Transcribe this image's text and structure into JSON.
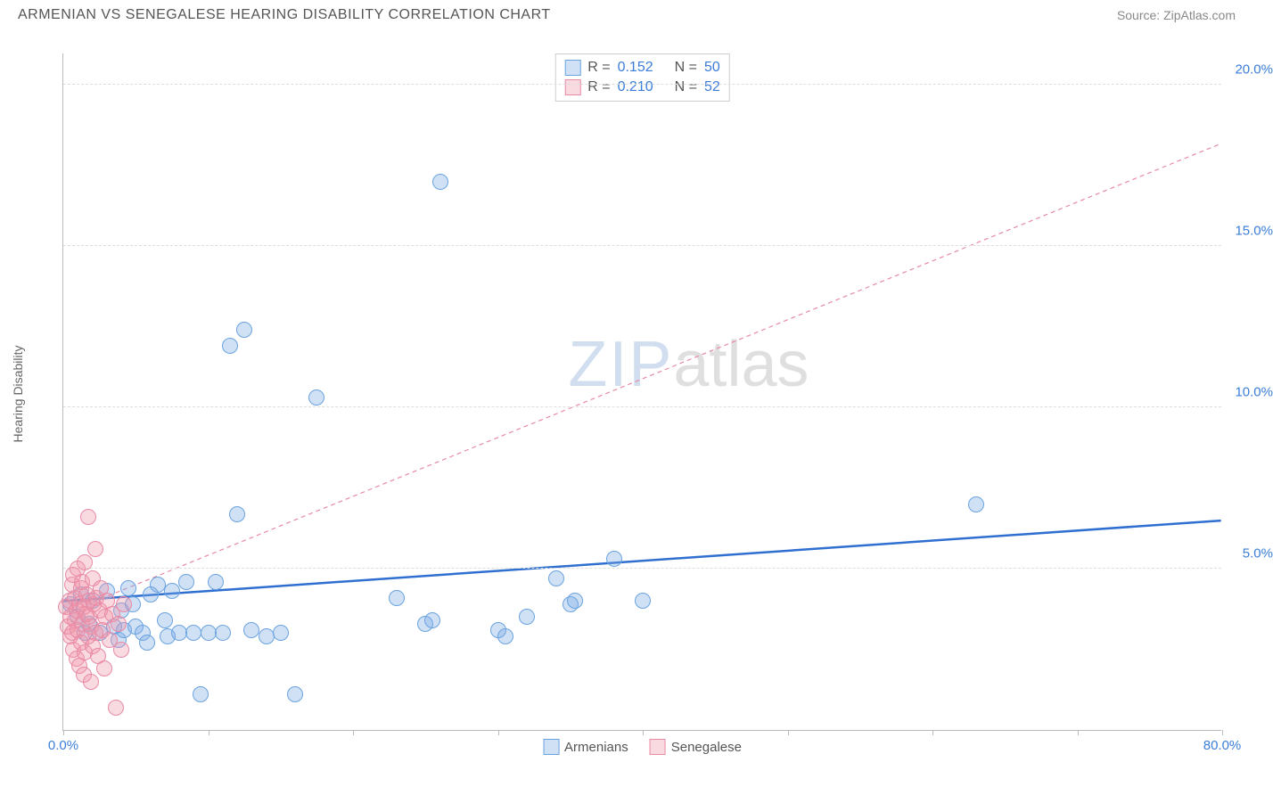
{
  "header": {
    "title": "ARMENIAN VS SENEGALESE HEARING DISABILITY CORRELATION CHART",
    "source": "Source: ZipAtlas.com"
  },
  "watermark": {
    "part1": "ZIP",
    "part2": "atlas"
  },
  "ylabel": "Hearing Disability",
  "chart": {
    "type": "scatter",
    "xlim": [
      0,
      80
    ],
    "ylim": [
      0,
      21
    ],
    "x_ticks": [
      0,
      10,
      20,
      30,
      40,
      50,
      60,
      70,
      80
    ],
    "x_tick_labels": {
      "0": "0.0%",
      "80": "80.0%"
    },
    "y_gridlines": [
      5,
      10,
      15,
      20
    ],
    "y_tick_labels": {
      "5": "5.0%",
      "10": "10.0%",
      "15": "15.0%",
      "20": "20.0%"
    },
    "axis_label_color": "#3b7dd8",
    "grid_color": "#dddddd",
    "background_color": "#ffffff",
    "marker_radius": 9,
    "marker_stroke_width": 1.2,
    "series": [
      {
        "name": "Armenians",
        "fill": "rgba(120,170,230,0.35)",
        "stroke": "#6aa3e0",
        "trend": {
          "x1": 0,
          "y1": 4.0,
          "x2": 80,
          "y2": 6.5,
          "stroke": "#2f6fd0",
          "width": 2.5,
          "dash": "none"
        },
        "stats": {
          "R": "0.152",
          "N": "50"
        },
        "points": [
          [
            0.5,
            3.9
          ],
          [
            1.0,
            3.5
          ],
          [
            1.2,
            4.2
          ],
          [
            1.5,
            3.0
          ],
          [
            1.8,
            3.3
          ],
          [
            2.0,
            4.0
          ],
          [
            2.5,
            3.0
          ],
          [
            3.0,
            4.3
          ],
          [
            3.5,
            3.2
          ],
          [
            3.8,
            2.8
          ],
          [
            4.0,
            3.7
          ],
          [
            4.2,
            3.1
          ],
          [
            4.5,
            4.4
          ],
          [
            5.0,
            3.2
          ],
          [
            5.5,
            3.0
          ],
          [
            5.8,
            2.7
          ],
          [
            6.0,
            4.2
          ],
          [
            6.5,
            4.5
          ],
          [
            7.0,
            3.4
          ],
          [
            7.2,
            2.9
          ],
          [
            8.0,
            3.0
          ],
          [
            8.5,
            4.6
          ],
          [
            9.0,
            3.0
          ],
          [
            9.5,
            1.1
          ],
          [
            10.0,
            3.0
          ],
          [
            10.5,
            4.6
          ],
          [
            11.0,
            3.0
          ],
          [
            11.5,
            11.9
          ],
          [
            12.0,
            6.7
          ],
          [
            12.5,
            12.4
          ],
          [
            13.0,
            3.1
          ],
          [
            14.0,
            2.9
          ],
          [
            15.0,
            3.0
          ],
          [
            16.0,
            1.1
          ],
          [
            17.5,
            10.3
          ],
          [
            23.0,
            4.1
          ],
          [
            25.0,
            3.3
          ],
          [
            25.5,
            3.4
          ],
          [
            26.0,
            17.0
          ],
          [
            30.0,
            3.1
          ],
          [
            30.5,
            2.9
          ],
          [
            32.0,
            3.5
          ],
          [
            34.0,
            4.7
          ],
          [
            35.0,
            3.9
          ],
          [
            35.3,
            4.0
          ],
          [
            38.0,
            5.3
          ],
          [
            40.0,
            4.0
          ],
          [
            63.0,
            7.0
          ],
          [
            7.5,
            4.3
          ],
          [
            4.8,
            3.9
          ]
        ]
      },
      {
        "name": "Senegalese",
        "fill": "rgba(240,150,170,0.35)",
        "stroke": "#e88aa5",
        "trend": {
          "x1": 0,
          "y1": 3.6,
          "x2": 80,
          "y2": 18.2,
          "stroke": "#e88aa5",
          "width": 1.2,
          "dash": "5,4"
        },
        "stats": {
          "R": "0.210",
          "N": "52"
        },
        "points": [
          [
            0.2,
            3.8
          ],
          [
            0.3,
            3.2
          ],
          [
            0.4,
            4.0
          ],
          [
            0.5,
            2.9
          ],
          [
            0.5,
            3.5
          ],
          [
            0.6,
            4.5
          ],
          [
            0.6,
            3.0
          ],
          [
            0.7,
            4.8
          ],
          [
            0.7,
            2.5
          ],
          [
            0.8,
            3.4
          ],
          [
            0.8,
            4.1
          ],
          [
            0.9,
            2.2
          ],
          [
            0.9,
            3.7
          ],
          [
            1.0,
            3.1
          ],
          [
            1.0,
            5.0
          ],
          [
            1.1,
            2.0
          ],
          [
            1.1,
            3.9
          ],
          [
            1.2,
            4.4
          ],
          [
            1.2,
            2.7
          ],
          [
            1.3,
            3.3
          ],
          [
            1.3,
            4.6
          ],
          [
            1.4,
            1.7
          ],
          [
            1.4,
            3.8
          ],
          [
            1.5,
            5.2
          ],
          [
            1.5,
            2.4
          ],
          [
            1.6,
            3.6
          ],
          [
            1.6,
            4.2
          ],
          [
            1.7,
            6.6
          ],
          [
            1.7,
            2.9
          ],
          [
            1.8,
            3.5
          ],
          [
            1.8,
            4.0
          ],
          [
            1.9,
            1.5
          ],
          [
            1.9,
            3.2
          ],
          [
            2.0,
            4.7
          ],
          [
            2.0,
            2.6
          ],
          [
            2.1,
            3.9
          ],
          [
            2.2,
            5.6
          ],
          [
            2.2,
            3.0
          ],
          [
            2.3,
            4.1
          ],
          [
            2.4,
            2.3
          ],
          [
            2.5,
            3.7
          ],
          [
            2.6,
            4.4
          ],
          [
            2.7,
            3.1
          ],
          [
            2.8,
            1.9
          ],
          [
            2.9,
            3.5
          ],
          [
            3.0,
            4.0
          ],
          [
            3.2,
            2.8
          ],
          [
            3.4,
            3.6
          ],
          [
            3.6,
            0.7
          ],
          [
            3.8,
            3.3
          ],
          [
            4.0,
            2.5
          ],
          [
            4.2,
            3.9
          ]
        ]
      }
    ]
  },
  "stat_legend": {
    "rows": [
      {
        "series": 0,
        "R_label": "R =",
        "N_label": "N ="
      },
      {
        "series": 1,
        "R_label": "R =",
        "N_label": "N ="
      }
    ]
  },
  "bottom_legend": {
    "items": [
      {
        "series": 0
      },
      {
        "series": 1
      }
    ]
  }
}
